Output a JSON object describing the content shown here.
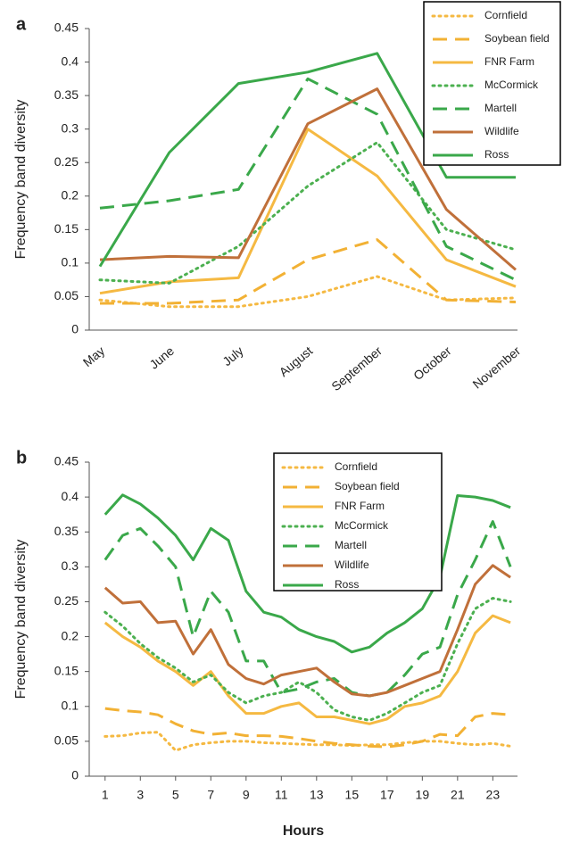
{
  "chart_data": [
    {
      "type": "line",
      "panel_label": "a",
      "y_label": "Frequency band diversity",
      "categories": [
        "May",
        "June",
        "July",
        "August",
        "September",
        "October",
        "November"
      ],
      "ylim": [
        0,
        0.45
      ],
      "yticks": [
        0,
        0.05,
        0.1,
        0.15,
        0.2,
        0.25,
        0.3,
        0.35,
        0.4,
        0.45
      ],
      "legend": "upper right",
      "series": [
        {
          "name": "Cornfield",
          "color": "#f5b942",
          "style": "dotted",
          "values": [
            0.045,
            0.035,
            0.035,
            0.05,
            0.08,
            0.045,
            0.048
          ]
        },
        {
          "name": "Soybean field",
          "color": "#f2b134",
          "style": "dashed",
          "values": [
            0.04,
            0.04,
            0.045,
            0.105,
            0.135,
            0.045,
            0.042
          ]
        },
        {
          "name": "FNR Farm",
          "color": "#f5b942",
          "style": "solid",
          "values": [
            0.055,
            0.072,
            0.078,
            0.3,
            0.23,
            0.105,
            0.065
          ]
        },
        {
          "name": "McCormick",
          "color": "#4cb050",
          "style": "dotted",
          "values": [
            0.075,
            0.07,
            0.125,
            0.215,
            0.28,
            0.15,
            0.12
          ]
        },
        {
          "name": "Martell",
          "color": "#3aa84a",
          "style": "dashed",
          "values": [
            0.182,
            0.193,
            0.21,
            0.375,
            0.322,
            0.125,
            0.075
          ]
        },
        {
          "name": "Wildlife",
          "color": "#c0703a",
          "style": "solid",
          "values": [
            0.105,
            0.11,
            0.108,
            0.308,
            0.36,
            0.18,
            0.09
          ]
        },
        {
          "name": "Ross",
          "color": "#3aa84a",
          "style": "solid",
          "values": [
            0.095,
            0.265,
            0.368,
            0.385,
            0.413,
            0.228,
            0.228
          ]
        }
      ]
    },
    {
      "type": "line",
      "panel_label": "b",
      "y_label": "Frequency band diversity",
      "x_label": "Hours",
      "x": [
        1,
        2,
        3,
        4,
        5,
        6,
        7,
        8,
        9,
        10,
        11,
        12,
        13,
        14,
        15,
        16,
        17,
        18,
        19,
        20,
        21,
        22,
        23,
        24
      ],
      "xlim": [
        0.1,
        24.4
      ],
      "xticks": [
        1,
        3,
        5,
        7,
        9,
        11,
        13,
        15,
        17,
        19,
        21,
        23
      ],
      "ylim": [
        0,
        0.45
      ],
      "yticks": [
        0,
        0.05,
        0.1,
        0.15,
        0.2,
        0.25,
        0.3,
        0.35,
        0.4,
        0.45
      ],
      "legend": "upper center",
      "series": [
        {
          "name": "Cornfield",
          "color": "#f5b942",
          "style": "dotted",
          "values": [
            0.057,
            0.058,
            0.062,
            0.063,
            0.037,
            0.045,
            0.048,
            0.05,
            0.05,
            0.048,
            0.047,
            0.046,
            0.045,
            0.045,
            0.044,
            0.045,
            0.045,
            0.048,
            0.05,
            0.05,
            0.047,
            0.045,
            0.047,
            0.043
          ]
        },
        {
          "name": "Soybean field",
          "color": "#f2b134",
          "style": "dashed",
          "values": [
            0.097,
            0.094,
            0.092,
            0.088,
            0.075,
            0.065,
            0.06,
            0.062,
            0.058,
            0.058,
            0.057,
            0.054,
            0.05,
            0.047,
            0.045,
            0.043,
            0.042,
            0.045,
            0.05,
            0.06,
            0.058,
            0.085,
            0.09,
            0.088
          ]
        },
        {
          "name": "FNR Farm",
          "color": "#f5b942",
          "style": "solid",
          "values": [
            0.22,
            0.2,
            0.185,
            0.165,
            0.15,
            0.13,
            0.15,
            0.115,
            0.09,
            0.09,
            0.1,
            0.105,
            0.085,
            0.085,
            0.08,
            0.075,
            0.082,
            0.1,
            0.105,
            0.115,
            0.15,
            0.205,
            0.23,
            0.22
          ]
        },
        {
          "name": "McCormick",
          "color": "#4cb050",
          "style": "dotted",
          "values": [
            0.235,
            0.215,
            0.19,
            0.17,
            0.155,
            0.135,
            0.145,
            0.12,
            0.105,
            0.115,
            0.12,
            0.135,
            0.12,
            0.095,
            0.085,
            0.08,
            0.09,
            0.105,
            0.12,
            0.13,
            0.19,
            0.24,
            0.255,
            0.25
          ]
        },
        {
          "name": "Martell",
          "color": "#3aa84a",
          "style": "dashed",
          "values": [
            0.31,
            0.345,
            0.355,
            0.33,
            0.3,
            0.2,
            0.265,
            0.235,
            0.165,
            0.165,
            0.12,
            0.125,
            0.135,
            0.14,
            0.12,
            0.115,
            0.12,
            0.145,
            0.175,
            0.185,
            0.26,
            0.31,
            0.365,
            0.3
          ]
        },
        {
          "name": "Wildlife",
          "color": "#c0703a",
          "style": "solid",
          "values": [
            0.27,
            0.248,
            0.25,
            0.22,
            0.222,
            0.175,
            0.21,
            0.16,
            0.14,
            0.132,
            0.145,
            0.15,
            0.155,
            0.135,
            0.118,
            0.115,
            0.12,
            0.13,
            0.14,
            0.15,
            0.21,
            0.275,
            0.302,
            0.285
          ]
        },
        {
          "name": "Ross",
          "color": "#3aa84a",
          "style": "solid",
          "values": [
            0.375,
            0.403,
            0.39,
            0.37,
            0.345,
            0.31,
            0.355,
            0.338,
            0.265,
            0.235,
            0.228,
            0.21,
            0.2,
            0.193,
            0.178,
            0.185,
            0.205,
            0.22,
            0.24,
            0.285,
            0.402,
            0.4,
            0.395,
            0.385
          ]
        }
      ]
    }
  ]
}
